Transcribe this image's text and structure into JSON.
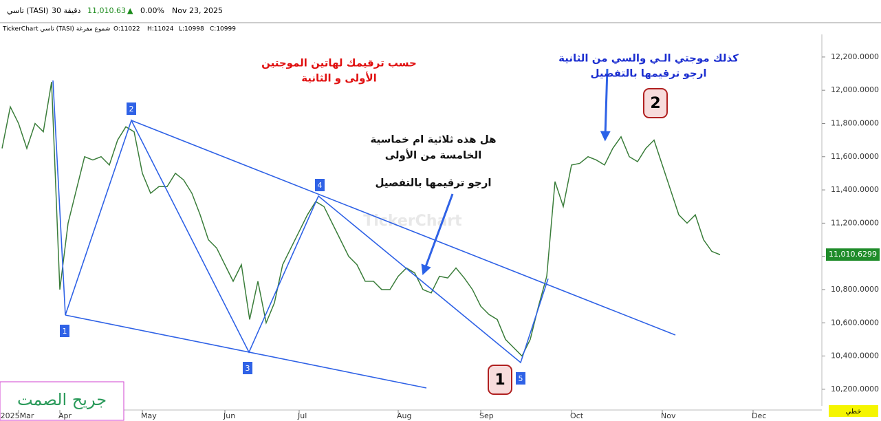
{
  "header": {
    "symbol": "تاسي (TASI)",
    "interval": "30 دقيقة",
    "price": "11,010.63",
    "arrow": "▲",
    "change": "0.00%",
    "date": "Nov 23, 2025",
    "legend": "TickerChart تاسي (TASI) شموع مفرغة",
    "open": "O:11022",
    "high": "H:11024",
    "low": "L:10998",
    "close": "C:10999"
  },
  "chart_data": {
    "type": "line",
    "categories": [
      null,
      null,
      "2025Mar",
      null,
      null,
      null,
      null,
      "Apr",
      null,
      null,
      null,
      null,
      null,
      null,
      null,
      null,
      null,
      "May",
      null,
      null,
      null,
      null,
      null,
      null,
      null,
      null,
      null,
      "Jun",
      null,
      null,
      null,
      null,
      null,
      null,
      null,
      null,
      "Jul",
      null,
      null,
      null,
      null,
      null,
      null,
      null,
      null,
      null,
      null,
      null,
      "Aug",
      null,
      null,
      null,
      null,
      null,
      null,
      null,
      null,
      null,
      "Sep",
      null,
      null,
      null,
      null,
      null,
      null,
      null,
      null,
      null,
      null,
      "Oct",
      null,
      null,
      null,
      null,
      null,
      null,
      null,
      null,
      null,
      null,
      "Nov",
      null,
      null,
      null,
      null,
      null,
      null,
      null,
      null,
      null,
      null,
      "Dec",
      null,
      null,
      null,
      null,
      null,
      null,
      null
    ],
    "series": [
      {
        "name": "TASI",
        "color": "#3a7d3a",
        "values": [
          11650,
          11900,
          11800,
          11650,
          11800,
          11750,
          12050,
          10800,
          11200,
          11400,
          11600,
          11580,
          11600,
          11550,
          11700,
          11780,
          11750,
          11500,
          11380,
          11420,
          11420,
          11500,
          11460,
          11380,
          11250,
          11100,
          11050,
          10950,
          10850,
          10950,
          10620,
          10850,
          10600,
          10720,
          10950,
          11050,
          11150,
          11250,
          11330,
          11300,
          11200,
          11100,
          11000,
          10950,
          10850,
          10850,
          10800,
          10800,
          10880,
          10930,
          10900,
          10800,
          10780,
          10880,
          10870,
          10930,
          10870,
          10800,
          10700,
          10650,
          10620,
          10500,
          10450,
          10400,
          10500,
          10700,
          10880,
          11450,
          11300,
          11550,
          11560,
          11600,
          11580,
          11550,
          11650,
          11720,
          11600,
          11570,
          11650,
          11700,
          11550,
          11400,
          11250,
          11200,
          11250,
          11100,
          11030,
          11010,
          null,
          null,
          null,
          null,
          null,
          null,
          null,
          null,
          null,
          null,
          null
        ]
      }
    ],
    "ylim": [
      10100,
      12390
    ],
    "yticks": [
      {
        "value": 10200,
        "label": "10,200.0000"
      },
      {
        "value": 10400,
        "label": "10,400.0000"
      },
      {
        "value": 10600,
        "label": "10,600.0000"
      },
      {
        "value": 10800,
        "label": "10,800.0000"
      },
      {
        "value": 11000,
        "label": "11,000.0000"
      },
      {
        "value": 11200,
        "label": "11,200.0000"
      },
      {
        "value": 11400,
        "label": "11,400.0000"
      },
      {
        "value": 11600,
        "label": "11,600.0000"
      },
      {
        "value": 11800,
        "label": "11,800.0000"
      },
      {
        "value": 12000,
        "label": "12,000.0000"
      },
      {
        "value": 12200,
        "label": "12,200.0000"
      }
    ],
    "last_price": {
      "value": 11010.6299,
      "label": "11,010.6299"
    },
    "watermark": "TickerChart",
    "annotations": {
      "red": [
        "حسب ترقيمك لهاتين الموجتين",
        "الأولى و الثانية"
      ],
      "blue": [
        "كذلك موجتي الـي والسي من الثانية",
        "ارجو ترقيمها بالتفصيل"
      ],
      "black": [
        "هل هذه ثلاثية ام خماسية",
        "الخامسة من الأولى",
        "ارجو ترقيمها بالتفصيل"
      ]
    },
    "wave_labels": [
      "1",
      "2",
      "3",
      "4",
      "5"
    ],
    "circle_labels": [
      "1",
      "2"
    ],
    "signature": "جريح الصمت",
    "scale_button": "خطي"
  }
}
